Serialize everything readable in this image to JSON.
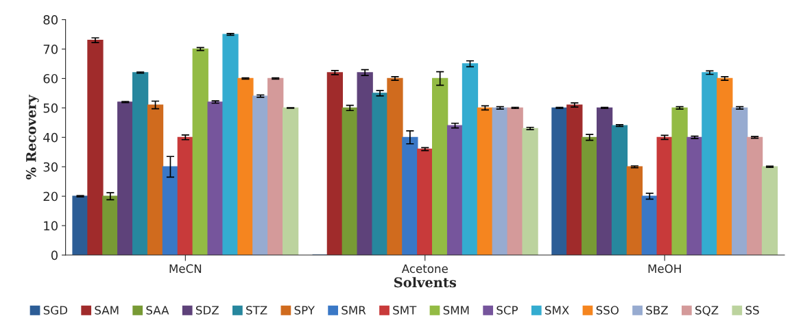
{
  "chart_data": {
    "type": "bar",
    "xlabel": "Solvents",
    "ylabel": "% Recovery",
    "categories": [
      "MeCN",
      "Acetone",
      "MeOH"
    ],
    "ylim": [
      0,
      80
    ],
    "yticks": [
      0,
      10,
      20,
      30,
      40,
      50,
      60,
      70,
      80
    ],
    "grid": false,
    "legend": "bottom",
    "series": [
      {
        "name": "SGD",
        "color": "#2c5d96",
        "values": [
          20,
          0,
          50
        ],
        "errors": [
          0.2,
          null,
          0.2
        ]
      },
      {
        "name": "SAM",
        "color": "#a02b2b",
        "values": [
          73,
          62,
          51
        ],
        "errors": [
          0.8,
          0.7,
          0.7
        ]
      },
      {
        "name": "SAA",
        "color": "#789a35",
        "values": [
          20,
          50,
          40
        ],
        "errors": [
          1.2,
          0.9,
          1.0
        ]
      },
      {
        "name": "SDZ",
        "color": "#5e427a",
        "values": [
          52,
          62,
          50
        ],
        "errors": [
          0.2,
          1.0,
          0.2
        ]
      },
      {
        "name": "STZ",
        "color": "#27879e",
        "values": [
          62,
          55,
          44
        ],
        "errors": [
          0.2,
          0.9,
          0.3
        ]
      },
      {
        "name": "SPY",
        "color": "#d06b1e",
        "values": [
          51,
          60,
          30
        ],
        "errors": [
          1.3,
          0.6,
          0.3
        ]
      },
      {
        "name": "SMR",
        "color": "#3a78c6",
        "values": [
          30,
          40,
          20
        ],
        "errors": [
          3.5,
          2.2,
          1.0
        ]
      },
      {
        "name": "SMT",
        "color": "#c83a3a",
        "values": [
          40,
          36,
          40
        ],
        "errors": [
          0.8,
          0.5,
          0.7
        ]
      },
      {
        "name": "SMM",
        "color": "#93bb44",
        "values": [
          70,
          60,
          50
        ],
        "errors": [
          0.5,
          2.3,
          0.4
        ]
      },
      {
        "name": "SCP",
        "color": "#76559c",
        "values": [
          52,
          44,
          40
        ],
        "errors": [
          0.4,
          0.8,
          0.4
        ]
      },
      {
        "name": "SMX",
        "color": "#34acd0",
        "values": [
          75,
          65,
          62
        ],
        "errors": [
          0.3,
          1.0,
          0.6
        ]
      },
      {
        "name": "SSO",
        "color": "#f5851f",
        "values": [
          60,
          50,
          60
        ],
        "errors": [
          0.2,
          0.7,
          0.6
        ]
      },
      {
        "name": "SBZ",
        "color": "#97abd0",
        "values": [
          54,
          50,
          50
        ],
        "errors": [
          0.4,
          0.4,
          0.4
        ]
      },
      {
        "name": "SQZ",
        "color": "#d49a9a",
        "values": [
          60,
          50,
          40
        ],
        "errors": [
          0.2,
          0.2,
          0.3
        ]
      },
      {
        "name": "SS",
        "color": "#bcd39e",
        "values": [
          50,
          43,
          30
        ],
        "errors": [
          0.1,
          0.4,
          0.2
        ]
      }
    ]
  }
}
